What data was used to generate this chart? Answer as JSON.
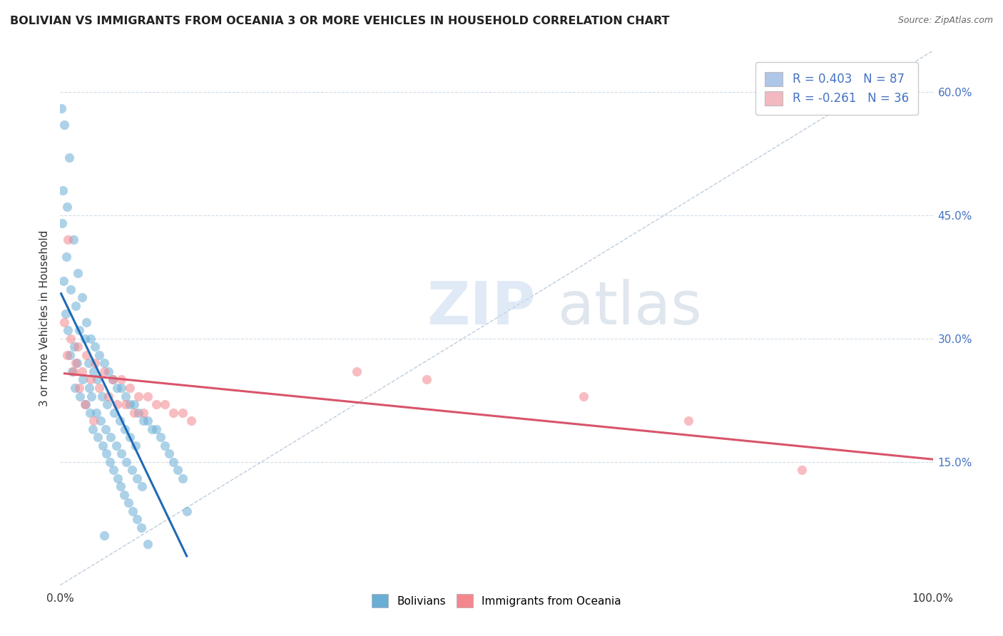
{
  "title": "BOLIVIAN VS IMMIGRANTS FROM OCEANIA 3 OR MORE VEHICLES IN HOUSEHOLD CORRELATION CHART",
  "source": "Source: ZipAtlas.com",
  "ylabel": "3 or more Vehicles in Household",
  "xlim": [
    0.0,
    1.0
  ],
  "ylim": [
    0.0,
    0.65
  ],
  "y_ticks_right": [
    0.15,
    0.3,
    0.45,
    0.6
  ],
  "y_tick_labels_right": [
    "15.0%",
    "30.0%",
    "45.0%",
    "60.0%"
  ],
  "legend_entries": [
    {
      "label": "R = 0.403   N = 87",
      "color": "#aec6e8"
    },
    {
      "label": "R = -0.261   N = 36",
      "color": "#f4b8c1"
    }
  ],
  "bolivians_color": "#6aaed6",
  "oceania_color": "#f4878e",
  "trendline_bolivians_color": "#1f6bb5",
  "trendline_oceania_color": "#d9546a",
  "grid_color": "#d0dce8",
  "bolivians_scatter": [
    [
      0.001,
      0.58
    ],
    [
      0.005,
      0.56
    ],
    [
      0.01,
      0.52
    ],
    [
      0.003,
      0.48
    ],
    [
      0.008,
      0.46
    ],
    [
      0.002,
      0.44
    ],
    [
      0.015,
      0.42
    ],
    [
      0.007,
      0.4
    ],
    [
      0.02,
      0.38
    ],
    [
      0.004,
      0.37
    ],
    [
      0.012,
      0.36
    ],
    [
      0.025,
      0.35
    ],
    [
      0.018,
      0.34
    ],
    [
      0.006,
      0.33
    ],
    [
      0.03,
      0.32
    ],
    [
      0.022,
      0.31
    ],
    [
      0.009,
      0.31
    ],
    [
      0.035,
      0.3
    ],
    [
      0.028,
      0.3
    ],
    [
      0.016,
      0.29
    ],
    [
      0.04,
      0.29
    ],
    [
      0.011,
      0.28
    ],
    [
      0.045,
      0.28
    ],
    [
      0.032,
      0.27
    ],
    [
      0.019,
      0.27
    ],
    [
      0.05,
      0.27
    ],
    [
      0.038,
      0.26
    ],
    [
      0.014,
      0.26
    ],
    [
      0.055,
      0.26
    ],
    [
      0.026,
      0.25
    ],
    [
      0.06,
      0.25
    ],
    [
      0.042,
      0.25
    ],
    [
      0.017,
      0.24
    ],
    [
      0.065,
      0.24
    ],
    [
      0.033,
      0.24
    ],
    [
      0.07,
      0.24
    ],
    [
      0.048,
      0.23
    ],
    [
      0.023,
      0.23
    ],
    [
      0.075,
      0.23
    ],
    [
      0.036,
      0.23
    ],
    [
      0.08,
      0.22
    ],
    [
      0.054,
      0.22
    ],
    [
      0.029,
      0.22
    ],
    [
      0.085,
      0.22
    ],
    [
      0.041,
      0.21
    ],
    [
      0.09,
      0.21
    ],
    [
      0.062,
      0.21
    ],
    [
      0.034,
      0.21
    ],
    [
      0.095,
      0.2
    ],
    [
      0.046,
      0.2
    ],
    [
      0.1,
      0.2
    ],
    [
      0.068,
      0.2
    ],
    [
      0.037,
      0.19
    ],
    [
      0.105,
      0.19
    ],
    [
      0.052,
      0.19
    ],
    [
      0.11,
      0.19
    ],
    [
      0.074,
      0.19
    ],
    [
      0.043,
      0.18
    ],
    [
      0.058,
      0.18
    ],
    [
      0.115,
      0.18
    ],
    [
      0.08,
      0.18
    ],
    [
      0.049,
      0.17
    ],
    [
      0.064,
      0.17
    ],
    [
      0.12,
      0.17
    ],
    [
      0.086,
      0.17
    ],
    [
      0.053,
      0.16
    ],
    [
      0.07,
      0.16
    ],
    [
      0.125,
      0.16
    ],
    [
      0.057,
      0.15
    ],
    [
      0.076,
      0.15
    ],
    [
      0.13,
      0.15
    ],
    [
      0.061,
      0.14
    ],
    [
      0.082,
      0.14
    ],
    [
      0.135,
      0.14
    ],
    [
      0.066,
      0.13
    ],
    [
      0.088,
      0.13
    ],
    [
      0.14,
      0.13
    ],
    [
      0.069,
      0.12
    ],
    [
      0.094,
      0.12
    ],
    [
      0.073,
      0.11
    ],
    [
      0.078,
      0.1
    ],
    [
      0.083,
      0.09
    ],
    [
      0.145,
      0.09
    ],
    [
      0.088,
      0.08
    ],
    [
      0.093,
      0.07
    ],
    [
      0.05,
      0.06
    ],
    [
      0.1,
      0.05
    ]
  ],
  "oceania_scatter": [
    [
      0.005,
      0.32
    ],
    [
      0.012,
      0.3
    ],
    [
      0.02,
      0.29
    ],
    [
      0.008,
      0.28
    ],
    [
      0.03,
      0.28
    ],
    [
      0.018,
      0.27
    ],
    [
      0.04,
      0.27
    ],
    [
      0.025,
      0.26
    ],
    [
      0.05,
      0.26
    ],
    [
      0.015,
      0.26
    ],
    [
      0.06,
      0.25
    ],
    [
      0.035,
      0.25
    ],
    [
      0.07,
      0.25
    ],
    [
      0.045,
      0.24
    ],
    [
      0.08,
      0.24
    ],
    [
      0.022,
      0.24
    ],
    [
      0.09,
      0.23
    ],
    [
      0.055,
      0.23
    ],
    [
      0.1,
      0.23
    ],
    [
      0.065,
      0.22
    ],
    [
      0.11,
      0.22
    ],
    [
      0.028,
      0.22
    ],
    [
      0.12,
      0.22
    ],
    [
      0.075,
      0.22
    ],
    [
      0.13,
      0.21
    ],
    [
      0.085,
      0.21
    ],
    [
      0.14,
      0.21
    ],
    [
      0.095,
      0.21
    ],
    [
      0.15,
      0.2
    ],
    [
      0.038,
      0.2
    ],
    [
      0.34,
      0.26
    ],
    [
      0.42,
      0.25
    ],
    [
      0.6,
      0.23
    ],
    [
      0.72,
      0.2
    ],
    [
      0.85,
      0.14
    ],
    [
      0.009,
      0.42
    ]
  ],
  "ref_line": [
    [
      0.0,
      0.0
    ],
    [
      1.0,
      0.65
    ]
  ],
  "bolivians_trendline_x": [
    0.001,
    0.145
  ],
  "oceania_trendline_x": [
    0.005,
    1.0
  ]
}
